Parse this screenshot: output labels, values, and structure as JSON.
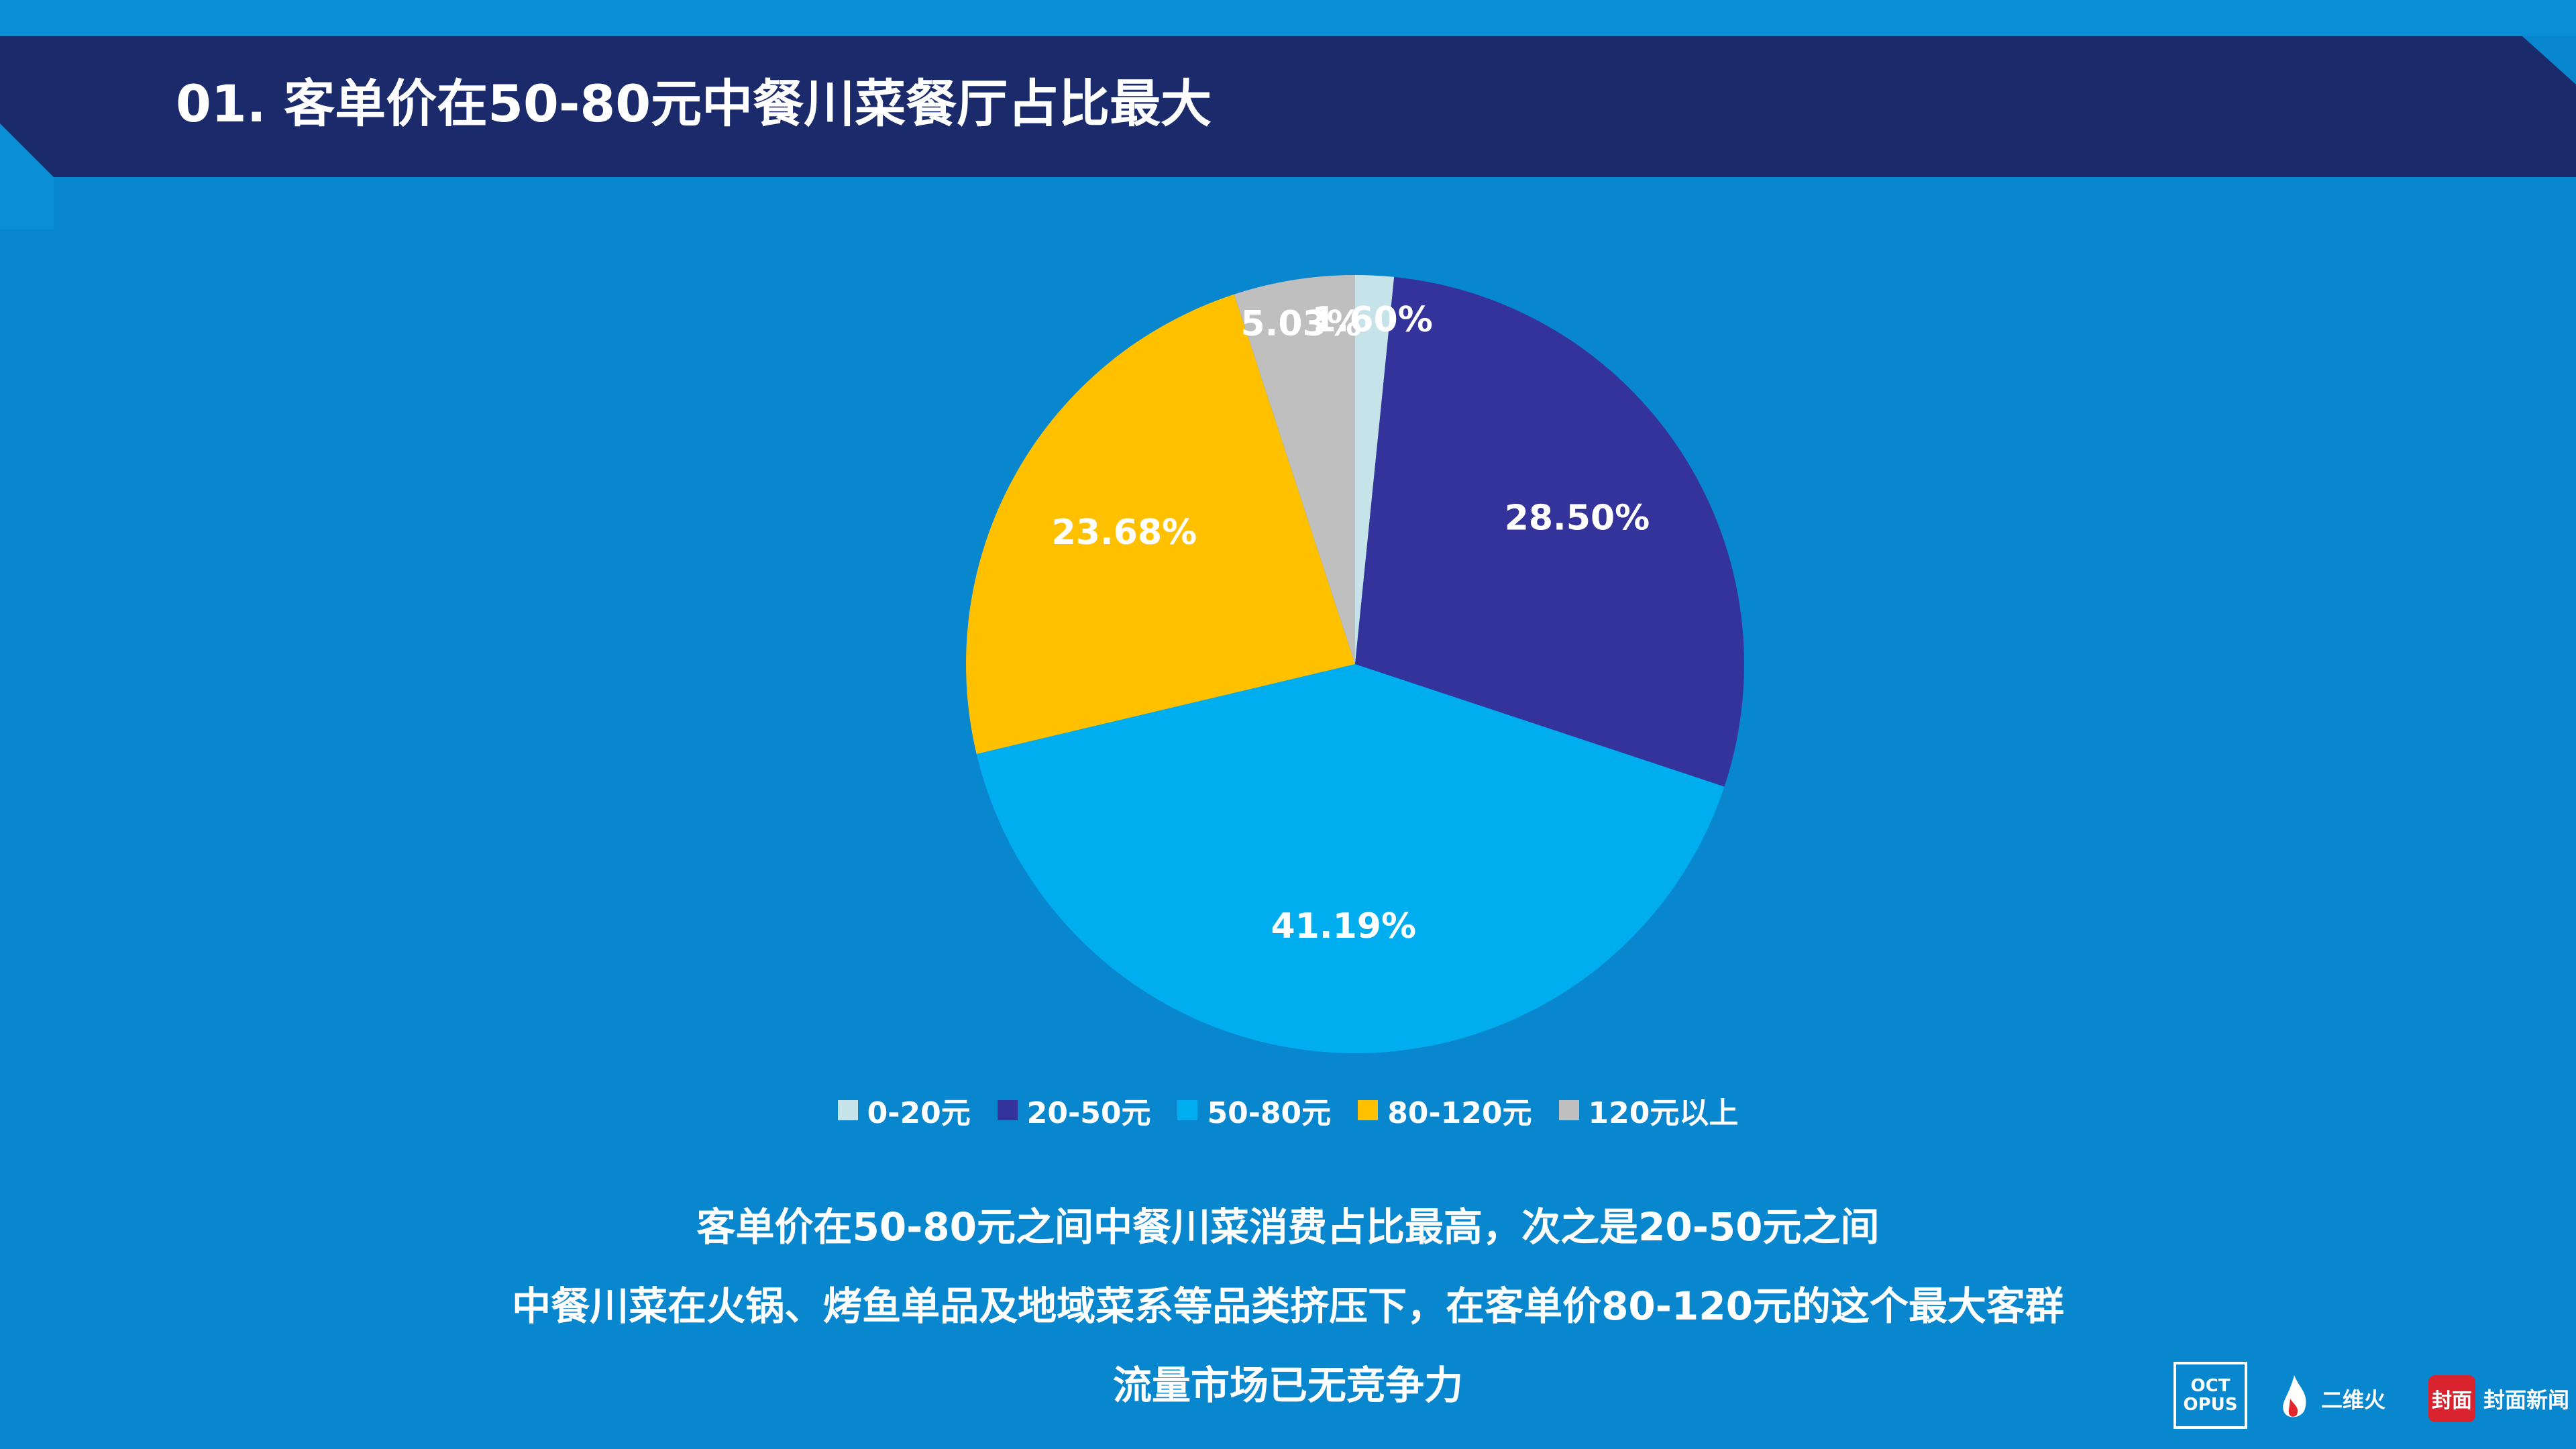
{
  "header": {
    "title": "01. 客单价在50-80元中餐川菜餐厅占比最大"
  },
  "chart_data": {
    "type": "pie",
    "title": "",
    "slices": [
      {
        "label": "0-20元",
        "value": 1.6,
        "display": "1.60%",
        "color": "#c7e3ea"
      },
      {
        "label": "20-50元",
        "value": 28.5,
        "display": "28.50%",
        "color": "#34339b"
      },
      {
        "label": "50-80元",
        "value": 41.19,
        "display": "41.19%",
        "color": "#00adef"
      },
      {
        "label": "80-120元",
        "value": 23.68,
        "display": "23.68%",
        "color": "#ffc000"
      },
      {
        "label": "120元以上",
        "value": 5.03,
        "display": "5.03%",
        "color": "#bfbfbf"
      }
    ],
    "legend_position": "bottom"
  },
  "summary": {
    "lines": [
      "客单价在50-80元之间中餐川菜消费占比最高，次之是20-50元之间",
      "中餐川菜在火锅、烤鱼单品及地域菜系等品类挤压下，在客单价80-120元的这个最大客群",
      "流量市场已无竞争力"
    ]
  },
  "logos": {
    "octopus_top": "OCT",
    "octopus_bottom": "OPUS",
    "erweihuo": "二维火",
    "fengmian_mark": "封面",
    "fengmian": "封面新闻"
  }
}
